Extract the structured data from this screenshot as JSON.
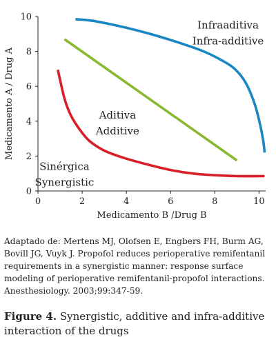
{
  "chart_data": {
    "type": "line",
    "xlabel": "Medicamento B /Drug B",
    "ylabel": "Medicamento A / Drug A",
    "xlim": [
      0,
      10.3
    ],
    "ylim": [
      0,
      10
    ],
    "xticks": [
      0,
      2,
      4,
      6,
      8,
      10
    ],
    "yticks": [
      0,
      2,
      4,
      6,
      8,
      10
    ],
    "grid": false,
    "series": [
      {
        "color": "#1a87c4",
        "x": [
          1.7,
          2.5,
          3.5,
          4.5,
          5.5,
          6.5,
          7.5,
          8.3,
          8.9,
          9.4,
          9.8,
          10.05,
          10.2,
          10.25
        ],
        "y": [
          9.85,
          9.75,
          9.5,
          9.2,
          8.85,
          8.45,
          8.0,
          7.5,
          7.0,
          6.2,
          5.0,
          3.8,
          2.8,
          2.2
        ]
      },
      {
        "color": "#8ab832",
        "x": [
          1.2,
          9.0
        ],
        "y": [
          8.7,
          1.75
        ]
      },
      {
        "color": "#d91f2a",
        "x": [
          0.9,
          1.2,
          1.5,
          1.9,
          2.3,
          2.8,
          3.3,
          4.0,
          5.0,
          6.0,
          7.0,
          8.0,
          9.0,
          10.0,
          10.25
        ],
        "y": [
          6.95,
          5.3,
          4.3,
          3.5,
          2.9,
          2.45,
          2.15,
          1.85,
          1.5,
          1.2,
          1.0,
          0.9,
          0.85,
          0.85,
          0.85
        ]
      }
    ],
    "annotations": [
      {
        "lines": [
          "Infraaditiva",
          "Infra-additive"
        ],
        "x": 8.6,
        "y": 9.3
      },
      {
        "lines": [
          "Aditiva",
          "Additive"
        ],
        "x": 3.6,
        "y": 4.15
      },
      {
        "lines": [
          "Sinérgica",
          "Synergistic"
        ],
        "x": 1.2,
        "y": 1.2
      }
    ]
  },
  "credit": "Adaptado de: Mertens MJ, Olofsen E, Engbers FH, Burm AG, Bovill JG, Vuyk J. Propofol reduces perioperative remifentanil requirements in a synergistic manner: response surface modeling of perioperative remifentanil-propofol interactions. Anesthesiology. 2003;99:347-59.",
  "caption": {
    "label": "Figure 4.",
    "text": "Synergistic, additive and infra-additive interaction of the drugs"
  }
}
